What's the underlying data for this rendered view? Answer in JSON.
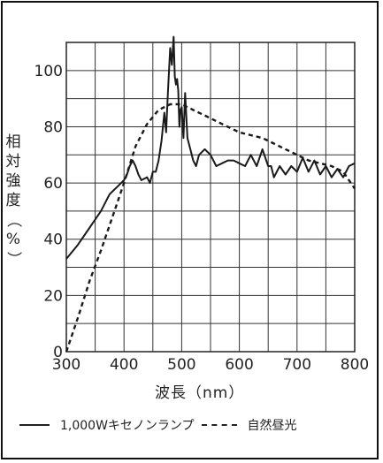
{
  "chart_data": {
    "type": "line",
    "xlabel": "波長（nm）",
    "ylabel": "相対強度（%）",
    "xlim": [
      300,
      800
    ],
    "ylim": [
      0,
      110
    ],
    "x_ticks": [
      300,
      400,
      500,
      600,
      700,
      800
    ],
    "y_ticks": [
      0,
      20,
      40,
      60,
      80,
      100
    ],
    "grid": true,
    "legend_position": "bottom",
    "series": [
      {
        "name": "1,000Wキセノンランプ",
        "style": "solid",
        "x": [
          300,
          320,
          340,
          360,
          375,
          390,
          400,
          405,
          410,
          415,
          420,
          425,
          430,
          440,
          445,
          450,
          455,
          460,
          465,
          470,
          473,
          476,
          480,
          483,
          486,
          488,
          490,
          492,
          494,
          496,
          498,
          500,
          503,
          506,
          510,
          515,
          520,
          525,
          530,
          540,
          550,
          560,
          570,
          580,
          590,
          600,
          610,
          620,
          630,
          640,
          650,
          655,
          660,
          670,
          680,
          690,
          700,
          710,
          720,
          730,
          740,
          750,
          760,
          770,
          780,
          790,
          800
        ],
        "values": [
          33,
          38,
          44,
          50,
          56,
          59,
          61,
          63,
          66,
          68,
          66,
          63,
          61,
          62,
          60,
          64,
          64,
          68,
          75,
          85,
          78,
          92,
          108,
          102,
          112,
          98,
          95,
          97,
          93,
          80,
          86,
          87,
          76,
          92,
          76,
          72,
          68,
          66,
          70,
          72,
          70,
          66,
          67,
          68,
          68,
          67,
          66,
          70,
          66,
          72,
          66,
          66,
          62,
          66,
          63,
          66,
          64,
          69,
          64,
          68,
          63,
          66,
          62,
          65,
          62,
          66,
          67
        ]
      },
      {
        "name": "自然昼光",
        "style": "dashed",
        "x": [
          300,
          320,
          340,
          360,
          380,
          400,
          420,
          440,
          460,
          480,
          490,
          500,
          520,
          540,
          560,
          580,
          600,
          620,
          640,
          660,
          680,
          700,
          720,
          740,
          760,
          780,
          800
        ],
        "values": [
          0,
          12,
          25,
          36,
          48,
          60,
          73,
          81,
          86,
          88,
          88,
          88,
          86,
          84,
          82,
          80,
          78,
          77,
          76,
          74,
          72,
          70,
          68,
          67,
          66,
          64,
          58
        ]
      }
    ]
  }
}
